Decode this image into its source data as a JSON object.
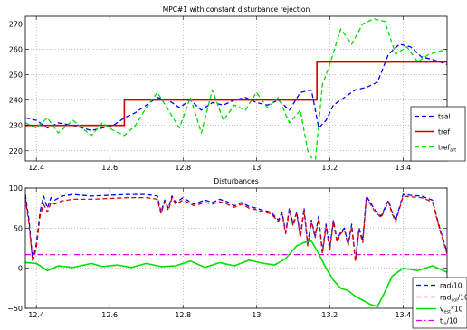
{
  "chart_data": [
    {
      "type": "line",
      "title": "MPC#1 with constant disturbance rejection",
      "xlabel": "",
      "ylabel": "",
      "xlim": [
        12.37,
        13.52
      ],
      "ylim": [
        216,
        273
      ],
      "x_ticks": [
        12.4,
        12.6,
        12.8,
        13,
        13.2,
        13.4
      ],
      "x_tick_labels": [
        "12.4",
        "12.6",
        "12.8",
        "13",
        "13.2",
        "13.4"
      ],
      "y_ticks": [
        220,
        230,
        240,
        250,
        260,
        270
      ],
      "y_tick_labels": [
        "220",
        "230",
        "240",
        "250",
        "260",
        "270"
      ],
      "grid": true,
      "legend_position": "bottom-right",
      "series": [
        {
          "name": "tsal",
          "legend_label": "tsal",
          "legend_sub": "",
          "color": "#0000ff",
          "dash": "dashed",
          "x": [
            12.37,
            12.4,
            12.43,
            12.46,
            12.5,
            12.55,
            12.58,
            12.61,
            12.64,
            12.67,
            12.7,
            12.73,
            12.76,
            12.79,
            12.82,
            12.85,
            12.88,
            12.91,
            12.94,
            12.97,
            13.0,
            13.03,
            13.06,
            13.09,
            13.12,
            13.15,
            13.17,
            13.19,
            13.21,
            13.24,
            13.27,
            13.3,
            13.33,
            13.36,
            13.39,
            13.42,
            13.45,
            13.48,
            13.52
          ],
          "y": [
            233,
            232,
            229,
            231,
            230,
            228,
            229,
            230,
            233,
            235,
            238,
            241,
            240,
            237,
            240,
            236,
            239,
            238,
            240,
            241,
            239,
            238,
            240,
            236,
            243,
            244,
            229,
            232,
            238,
            241,
            244,
            245,
            247,
            258,
            262,
            261,
            257,
            256,
            254
          ]
        },
        {
          "name": "tref",
          "legend_label": "tref",
          "legend_sub": "",
          "color": "#cc0000",
          "dash": "solid",
          "x": [
            12.37,
            12.64,
            12.64,
            13.165,
            13.165,
            13.52
          ],
          "y": [
            230,
            230,
            240,
            240,
            255,
            255
          ]
        },
        {
          "name": "tref_art",
          "legend_label": "tref",
          "legend_sub": "art",
          "color": "#00dd00",
          "dash": "dashed",
          "x": [
            12.37,
            12.4,
            12.43,
            12.46,
            12.5,
            12.55,
            12.58,
            12.61,
            12.64,
            12.67,
            12.7,
            12.73,
            12.76,
            12.79,
            12.82,
            12.85,
            12.88,
            12.91,
            12.94,
            12.97,
            13.0,
            13.03,
            13.06,
            13.09,
            13.12,
            13.14,
            13.16,
            13.18,
            13.2,
            13.23,
            13.26,
            13.29,
            13.32,
            13.35,
            13.38,
            13.41,
            13.44,
            13.47,
            13.52
          ],
          "y": [
            231,
            229,
            233,
            227,
            232,
            226,
            231,
            228,
            226,
            230,
            237,
            243,
            236,
            229,
            241,
            227,
            244,
            232,
            238,
            236,
            243,
            237,
            241,
            231,
            236,
            220,
            215,
            246,
            254,
            268,
            262,
            270,
            272,
            271,
            258,
            261,
            255,
            258,
            260
          ]
        }
      ]
    },
    {
      "type": "line",
      "title": "Disturbances",
      "xlabel": "",
      "ylabel": "",
      "xlim": [
        12.37,
        13.52
      ],
      "ylim": [
        -50,
        100
      ],
      "x_ticks": [
        12.4,
        12.6,
        12.8,
        13,
        13.2,
        13.4
      ],
      "x_tick_labels": [
        "12.4",
        "12.6",
        "12.8",
        "13",
        "13.2",
        "13.4"
      ],
      "y_ticks": [
        -50,
        0,
        50,
        100
      ],
      "y_tick_labels": [
        "−50",
        "0",
        "50",
        "100"
      ],
      "grid": true,
      "legend_position": "bottom-right",
      "series": [
        {
          "name": "rad/10",
          "legend_label": "rad/10",
          "legend_sub": "",
          "color": "#0000ff",
          "dash": "dashed",
          "x": [
            12.37,
            12.38,
            12.39,
            12.4,
            12.41,
            12.42,
            12.43,
            12.44,
            12.45,
            12.47,
            12.5,
            12.55,
            12.6,
            12.65,
            12.7,
            12.73,
            12.74,
            12.75,
            12.76,
            12.77,
            12.78,
            12.8,
            12.83,
            12.86,
            12.88,
            12.9,
            12.92,
            12.94,
            12.96,
            12.98,
            13.0,
            13.02,
            13.04,
            13.06,
            13.07,
            13.08,
            13.09,
            13.1,
            13.11,
            13.12,
            13.13,
            13.14,
            13.15,
            13.16,
            13.17,
            13.18,
            13.19,
            13.2,
            13.21,
            13.22,
            13.23,
            13.24,
            13.25,
            13.26,
            13.27,
            13.28,
            13.29,
            13.3,
            13.32,
            13.34,
            13.36,
            13.37,
            13.38,
            13.4,
            13.42,
            13.45,
            13.48,
            13.5,
            13.52
          ],
          "y": [
            92,
            60,
            10,
            30,
            70,
            90,
            75,
            88,
            85,
            90,
            92,
            90,
            91,
            92,
            92,
            90,
            70,
            85,
            75,
            90,
            82,
            88,
            80,
            85,
            82,
            86,
            83,
            78,
            82,
            77,
            75,
            72,
            70,
            60,
            70,
            45,
            75,
            55,
            70,
            40,
            75,
            30,
            60,
            40,
            65,
            20,
            55,
            25,
            60,
            35,
            45,
            50,
            30,
            55,
            10,
            50,
            35,
            90,
            75,
            65,
            85,
            70,
            60,
            92,
            91,
            90,
            85,
            50,
            20
          ]
        },
        {
          "name": "rad_col/10",
          "legend_label": "rad",
          "legend_sub": "col",
          "legend_suffix": "/10",
          "color": "#dd0000",
          "dash": "dashed",
          "x": [
            12.37,
            12.38,
            12.39,
            12.4,
            12.41,
            12.42,
            12.43,
            12.44,
            12.45,
            12.47,
            12.5,
            12.55,
            12.6,
            12.65,
            12.7,
            12.73,
            12.74,
            12.75,
            12.76,
            12.77,
            12.78,
            12.8,
            12.83,
            12.86,
            12.88,
            12.9,
            12.92,
            12.94,
            12.96,
            12.98,
            13.0,
            13.02,
            13.04,
            13.06,
            13.07,
            13.08,
            13.09,
            13.1,
            13.11,
            13.12,
            13.13,
            13.14,
            13.15,
            13.16,
            13.17,
            13.18,
            13.19,
            13.2,
            13.21,
            13.22,
            13.23,
            13.24,
            13.25,
            13.26,
            13.27,
            13.28,
            13.29,
            13.3,
            13.32,
            13.34,
            13.36,
            13.37,
            13.38,
            13.4,
            13.42,
            13.45,
            13.48,
            13.5,
            13.52
          ],
          "y": [
            88,
            55,
            8,
            25,
            65,
            80,
            70,
            82,
            80,
            84,
            86,
            86,
            87,
            88,
            88,
            86,
            68,
            83,
            72,
            88,
            80,
            85,
            78,
            82,
            80,
            83,
            80,
            76,
            80,
            75,
            73,
            70,
            68,
            58,
            68,
            43,
            72,
            53,
            68,
            38,
            72,
            28,
            58,
            38,
            62,
            18,
            52,
            22,
            58,
            32,
            43,
            48,
            28,
            52,
            8,
            48,
            32,
            88,
            73,
            63,
            83,
            68,
            58,
            90,
            89,
            88,
            83,
            48,
            18
          ]
        },
        {
          "name": "v_est*10",
          "legend_label": "v",
          "legend_sub": "est",
          "legend_suffix": "*10",
          "color": "#00e000",
          "dash": "solid",
          "x": [
            12.37,
            12.4,
            12.43,
            12.46,
            12.5,
            12.55,
            12.58,
            12.62,
            12.66,
            12.7,
            12.74,
            12.78,
            12.82,
            12.86,
            12.9,
            12.94,
            12.98,
            13.02,
            13.05,
            13.08,
            13.11,
            13.13,
            13.15,
            13.17,
            13.19,
            13.21,
            13.23,
            13.25,
            13.27,
            13.29,
            13.31,
            13.33,
            13.35,
            13.37,
            13.4,
            13.44,
            13.48,
            13.52
          ],
          "y": [
            7,
            6,
            -3,
            3,
            1,
            6,
            2,
            4,
            1,
            6,
            2,
            3,
            9,
            1,
            7,
            3,
            10,
            6,
            4,
            12,
            28,
            32,
            34,
            18,
            0,
            -15,
            -25,
            -28,
            -35,
            -40,
            -45,
            -48,
            -30,
            -10,
            0,
            -3,
            3,
            -5
          ]
        },
        {
          "name": "t_in/10",
          "legend_label": "t",
          "legend_sub": "in",
          "legend_suffix": "/10",
          "color": "#dd00dd",
          "dash": "dashdot",
          "x": [
            12.37,
            13.52
          ],
          "y": [
            17,
            17
          ]
        }
      ]
    }
  ]
}
